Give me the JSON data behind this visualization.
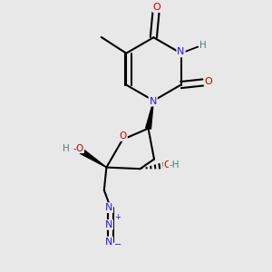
{
  "bg_color": "#e8e8e8",
  "atom_colors": {
    "C": "#000000",
    "N": "#1a1aff",
    "O": "#cc0000",
    "H": "#4a8080"
  },
  "bond_color": "#000000"
}
